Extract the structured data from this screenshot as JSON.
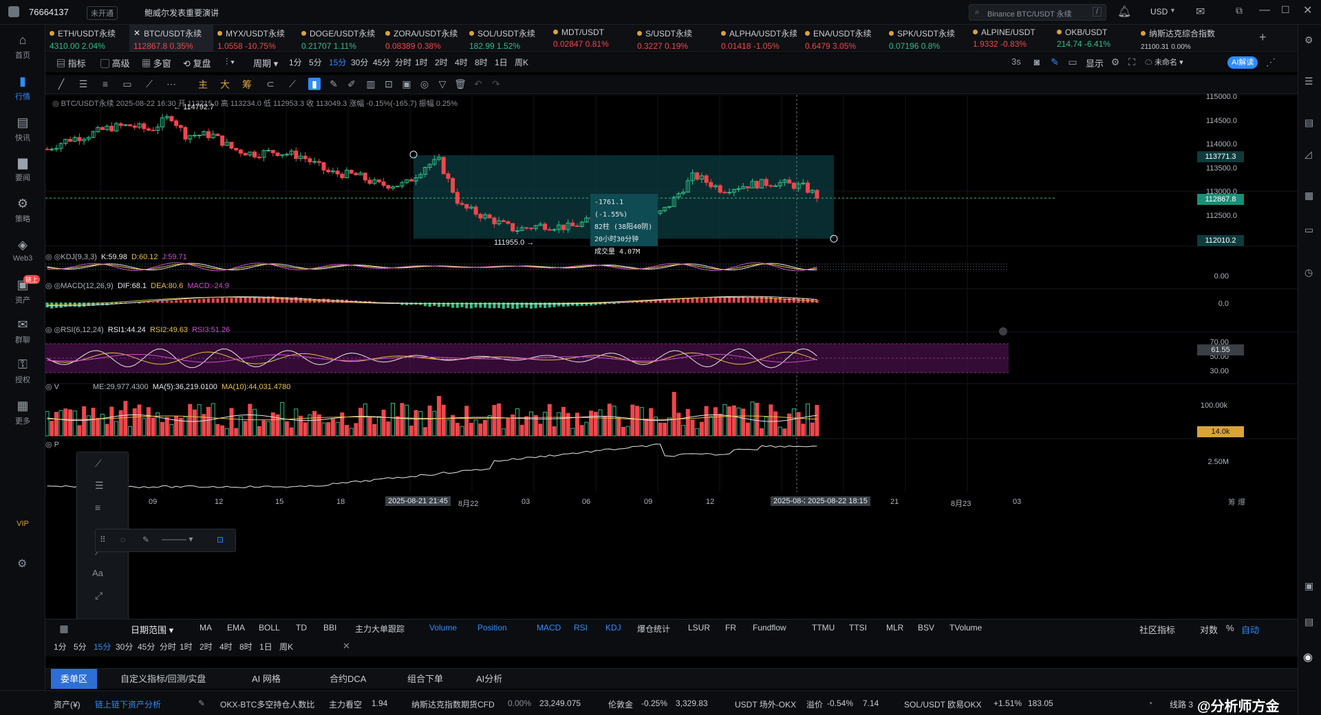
{
  "topbar": {
    "user_id": "76664137",
    "badge": "未开通",
    "news": "鲍威尔发表重要演讲",
    "search_placeholder": "Binance BTC/USDT 永续",
    "search_shortcut": "/",
    "currency": "USD"
  },
  "tickers": [
    {
      "name": "ETH/USDT永续",
      "price": "4310.00",
      "change": "2.04%",
      "dir": "up"
    },
    {
      "name": "BTC/USDT永续",
      "price": "112867.8",
      "change": "0.35%",
      "dir": "dn",
      "active": true
    },
    {
      "name": "MYX/USDT永续",
      "price": "1.0558",
      "change": "-10.75%",
      "dir": "dn"
    },
    {
      "name": "DOGE/USDT永续",
      "price": "0.21707",
      "change": "1.11%",
      "dir": "up"
    },
    {
      "name": "ZORA/USDT永续",
      "price": "0.08389",
      "change": "0.38%",
      "dir": "dn"
    },
    {
      "name": "SOL/USDT永续",
      "price": "182.99",
      "change": "1.52%",
      "dir": "up"
    },
    {
      "name": "MDT/USDT",
      "price": "0.02847",
      "change": "0.81%",
      "dir": "dn"
    },
    {
      "name": "S/USDT永续",
      "price": "0.3227",
      "change": "0.19%",
      "dir": "dn"
    },
    {
      "name": "ALPHA/USDT永续",
      "price": "0.01418",
      "change": "-1.05%",
      "dir": "dn"
    },
    {
      "name": "ENA/USDT永续",
      "price": "0.6479",
      "change": "3.05%",
      "dir": "dn"
    },
    {
      "name": "SPK/USDT永续",
      "price": "0.07196",
      "change": "0.8%",
      "dir": "up"
    },
    {
      "name": "ALPINE/USDT",
      "price": "1.9332",
      "change": "-0.83%",
      "dir": "dn"
    },
    {
      "name": "OKB/USDT",
      "price": "214.74",
      "change": "-6.41%",
      "dir": "up"
    },
    {
      "name": "纳斯达克综合指数",
      "price": "21100.31",
      "change": "0.00%",
      "dir": "none"
    }
  ],
  "toolbar1": {
    "indicators": "指标",
    "advanced": "高级",
    "multi": "多窗",
    "replay": "复盘",
    "period": "周期",
    "timeframes": [
      "1分",
      "5分",
      "15分",
      "30分",
      "45分",
      "分时",
      "1时",
      "2时",
      "4时",
      "8时",
      "1日",
      "周K"
    ],
    "selected_tf": "15分",
    "interval": "3s",
    "display": "显示",
    "unnamed": "未命名",
    "ai": "AI解读"
  },
  "toolbar2": {
    "main": "主",
    "big": "大",
    "chip": "筹"
  },
  "chart": {
    "info": "BTC/USDT永续  2025-08-22 16:30  开 113215.0  高 113234.0  低 112953.3  收 113049.3  涨幅 -0.15%(-165.7)  振幅 0.25%",
    "high_label": "114792.7",
    "low_label": "111955.0",
    "price_ticks": [
      "115000.0",
      "114500.0",
      "114000.0",
      "113500.0",
      "113000.0",
      "112500.0"
    ],
    "tags": {
      "box_top": "113771.3",
      "current": "112867.8",
      "box_bottom": "112010.2"
    },
    "measure": {
      "line1": "-1761.1 (-1.55%)",
      "line2": "82柱 (38阳40阴)",
      "line3": "20小时30分钟",
      "line4": "成交量 4.07M"
    },
    "kdj": {
      "name": "KDJ(9,3,3)",
      "k": "K:59.98",
      "d": "D:60.12",
      "j": "J:59.71",
      "tick": "0.00"
    },
    "macd": {
      "name": "MACD(12,26,9)",
      "dif": "DIF:68.1",
      "dea": "DEA:80.6",
      "macd": "MACD:-24.9",
      "tick": "0.0"
    },
    "rsi": {
      "name": "RSI(6,12,24)",
      "r1": "RSI1:44.24",
      "r2": "RSI2:49.63",
      "r3": "RSI3:51.26",
      "ticks": [
        "70.00",
        "50.00",
        "30.00"
      ],
      "tag": "61.55"
    },
    "vol": {
      "name": "ME:29,977.4300",
      "ma5": "MA(5):36,219.0100",
      "ma10": "MA(10):44,031.4780",
      "tick": "100.00k",
      "tag": "14.0k"
    },
    "obv": {
      "tick": "2.50M"
    },
    "time_ticks": [
      "09",
      "12",
      "15",
      "18",
      "8月22",
      "03",
      "06",
      "09",
      "12",
      "21",
      "8月23",
      "03"
    ],
    "time_tag_left": "2025-08-21 21:45",
    "time_tag_right": "2025-08-22 18:15",
    "time_tag_mid": "2025-08-22"
  },
  "bottom_tabs": {
    "date_range": "日期范围",
    "items": [
      "MA",
      "EMA",
      "BOLL",
      "TD",
      "BBI",
      "主力大单跟踪",
      "Volume",
      "Position",
      "MACD",
      "RSI",
      "KDJ",
      "爆仓统计",
      "LSUR",
      "FR",
      "Fundflow",
      "TTMU",
      "TTSI",
      "MLR",
      "BSV",
      "TVolume"
    ],
    "right": [
      "社区指标",
      "对数",
      "%",
      "自动"
    ]
  },
  "bottom_tf": [
    "1分",
    "5分",
    "15分",
    "30分",
    "45分",
    "分时",
    "1时",
    "2时",
    "4时",
    "8时",
    "1日",
    "周K"
  ],
  "panel_tabs": [
    "委单区",
    "自定义指标/回测/实盘",
    "AI 网格",
    "合约DCA",
    "组合下单",
    "AI分析"
  ],
  "status": {
    "assets": "资产(¥)",
    "chain": "链上链下资产分析",
    "s1": "OKX-BTC多空持仓人数比",
    "s1b": "主力看空",
    "s1v": "1.94",
    "s2": "纳斯达克指数期货CFD",
    "s2c": "0.00%",
    "s2v": "23,249.075",
    "s3": "伦敦金",
    "s3c": "-0.25%",
    "s3v": "3,329.83",
    "s4": "USDT 场外-OKX",
    "s4b": "溢价",
    "s4c": "-0.54%",
    "s4v": "7.14",
    "s5": "SOL/USDT 欧易OKX",
    "s5c": "+1.51%",
    "s5v": "183.05",
    "line": "线路 3",
    "watermark": "@分析师方金"
  },
  "left_nav": [
    {
      "label": "首页",
      "icon": "home-icon"
    },
    {
      "label": "行情",
      "icon": "chart-icon"
    },
    {
      "label": "快讯",
      "icon": "news-icon"
    },
    {
      "label": "要闻",
      "icon": "article-icon"
    },
    {
      "label": "策略",
      "icon": "strategy-icon"
    },
    {
      "label": "Web3",
      "icon": "web3-icon"
    },
    {
      "label": "资产",
      "icon": "wallet-icon",
      "badge": "链上"
    },
    {
      "label": "群聊",
      "icon": "chat-icon"
    },
    {
      "label": "授权",
      "icon": "key-icon"
    },
    {
      "label": "更多",
      "icon": "more-icon"
    }
  ],
  "vip": "VIP",
  "float_panel": {
    "text": "Aa"
  },
  "colors": {
    "up": "#2fbf8b",
    "down": "#f0464c",
    "accent": "#2d8cff",
    "box": "#0b3b3f",
    "ma_yellow": "#e6c24a",
    "rsi_band": "#4a0f4a"
  }
}
